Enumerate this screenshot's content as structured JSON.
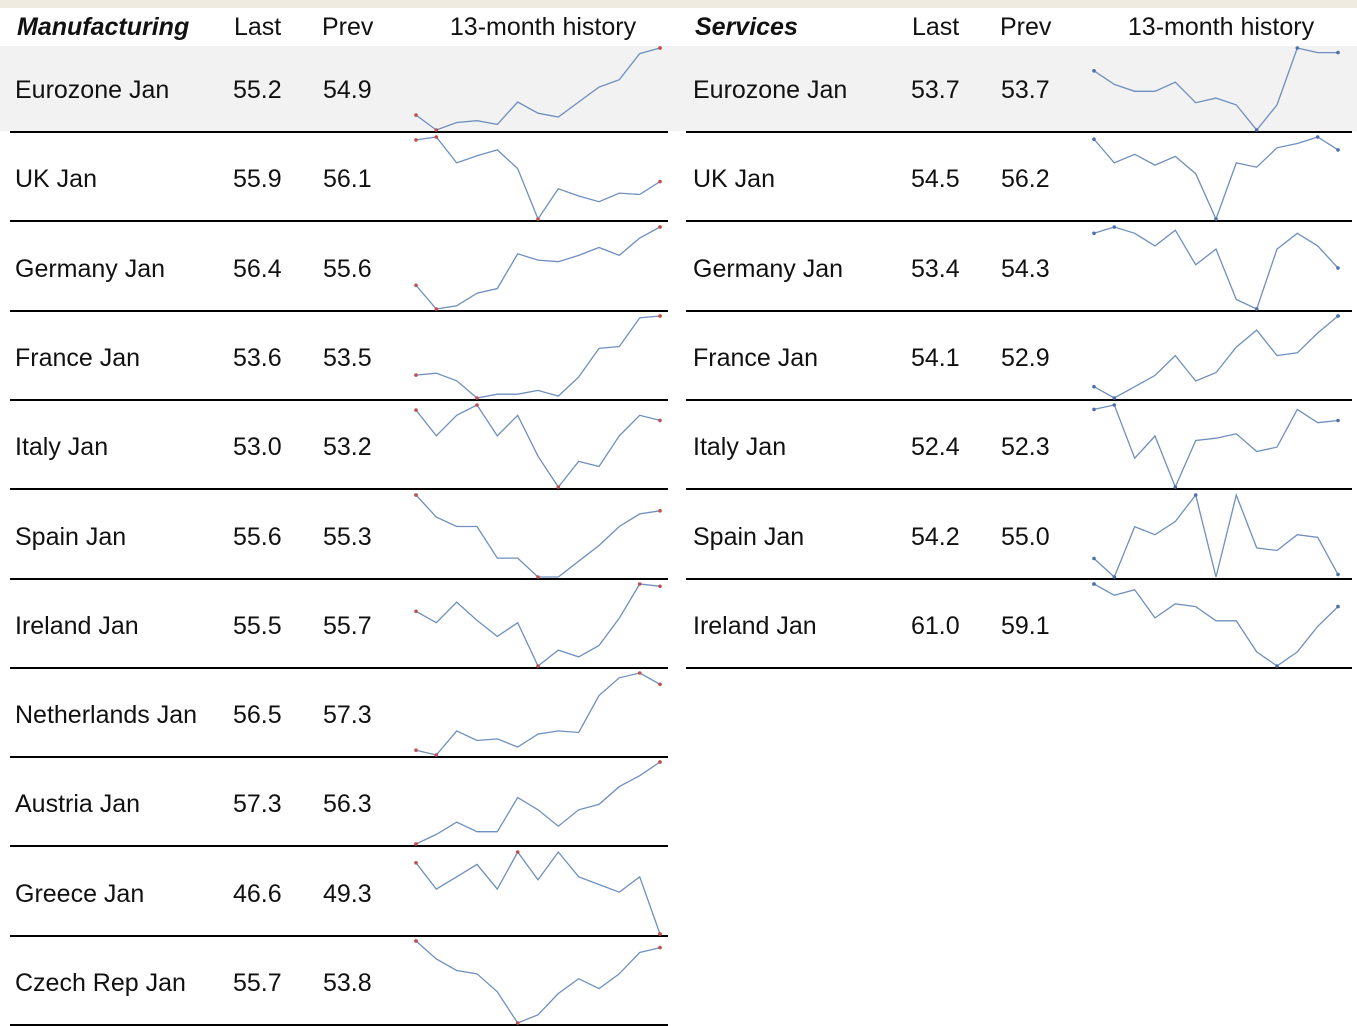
{
  "colors": {
    "line": "#6f8fbf",
    "marker_extreme": "#c0504d",
    "marker_end": "#4f6fa8",
    "highlight_row": "#f2f2f2",
    "top_band": "#efebe0"
  },
  "manufacturing": {
    "title": "Manufacturing",
    "last_label": "Last",
    "prev_label": "Prev",
    "history_label": "13-month history"
  },
  "services": {
    "title": "Services",
    "last_label": "Last",
    "prev_label": "Prev",
    "history_label": "13-month history"
  },
  "chart_data": [
    {
      "type": "table",
      "section": "Manufacturing",
      "columns": [
        "",
        "Last",
        "Prev",
        "13-month history"
      ],
      "rows": [
        {
          "label": "Eurozone Jan",
          "last": "55.2",
          "prev": "54.9",
          "history": [
            51.1,
            50.3,
            50.7,
            50.8,
            50.6,
            51.8,
            51.2,
            51.0,
            51.8,
            52.6,
            53.0,
            54.4,
            54.7
          ]
        },
        {
          "label": "UK Jan",
          "last": "55.9",
          "prev": "56.1",
          "history": [
            55.4,
            55.6,
            53.8,
            54.3,
            54.7,
            53.4,
            49.9,
            52.0,
            51.5,
            51.1,
            51.7,
            51.6,
            52.5
          ]
        },
        {
          "label": "Germany Jan",
          "last": "56.4",
          "prev": "55.6",
          "history": [
            51.9,
            50.4,
            50.6,
            51.4,
            51.7,
            53.9,
            53.5,
            53.4,
            53.8,
            54.3,
            53.8,
            54.9,
            55.6
          ]
        },
        {
          "label": "France Jan",
          "last": "53.6",
          "prev": "53.5",
          "history": [
            48.7,
            48.8,
            48.4,
            47.5,
            47.7,
            47.7,
            47.9,
            47.6,
            48.6,
            50.1,
            50.2,
            51.7,
            51.8
          ]
        },
        {
          "label": "Italy Jan",
          "last": "53.0",
          "prev": "53.2",
          "history": [
            53.4,
            52.9,
            53.3,
            53.5,
            52.9,
            53.3,
            52.5,
            51.9,
            52.4,
            52.3,
            52.9,
            53.3,
            53.2
          ]
        },
        {
          "label": "Spain Jan",
          "last": "55.6",
          "prev": "55.3",
          "history": [
            53.6,
            52.9,
            52.6,
            52.6,
            51.6,
            51.6,
            51.0,
            51.0,
            51.5,
            52.0,
            52.6,
            53.0,
            53.1
          ]
        },
        {
          "label": "Ireland Jan",
          "last": "55.5",
          "prev": "55.7",
          "history": [
            53.6,
            53.1,
            54.0,
            53.2,
            52.5,
            53.1,
            51.2,
            51.9,
            51.6,
            52.1,
            53.3,
            54.8,
            54.7
          ]
        },
        {
          "label": "Netherlands Jan",
          "last": "56.5",
          "prev": "57.3",
          "history": [
            52.5,
            52.2,
            53.7,
            53.1,
            53.2,
            52.7,
            53.5,
            53.7,
            53.6,
            55.9,
            57.0,
            57.3,
            56.6
          ]
        },
        {
          "label": "Austria Jan",
          "last": "57.3",
          "prev": "56.3",
          "history": [
            51.3,
            52.0,
            52.9,
            52.2,
            52.2,
            54.7,
            53.8,
            52.6,
            53.8,
            54.2,
            55.5,
            56.3,
            57.3
          ]
        },
        {
          "label": "Greece Jan",
          "last": "46.6",
          "prev": "49.3",
          "history": [
            51.2,
            49.5,
            50.3,
            51.1,
            49.5,
            51.9,
            50.1,
            51.9,
            50.3,
            49.8,
            49.3,
            50.3,
            46.6
          ]
        },
        {
          "label": "Czech Rep Jan",
          "last": "55.7",
          "prev": "53.8",
          "history": [
            57.8,
            56.7,
            56.0,
            55.8,
            54.7,
            52.8,
            53.3,
            54.6,
            55.5,
            54.9,
            55.8,
            57.1,
            57.4
          ]
        }
      ]
    },
    {
      "type": "table",
      "section": "Services",
      "columns": [
        "",
        "Last",
        "Prev",
        "13-month history"
      ],
      "rows": [
        {
          "label": "Eurozone Jan",
          "last": "53.7",
          "prev": "53.7",
          "history": [
            53.4,
            52.8,
            52.5,
            52.5,
            52.9,
            52.0,
            52.2,
            51.9,
            50.8,
            51.9,
            54.4,
            54.2,
            54.2
          ]
        },
        {
          "label": "UK Jan",
          "last": "54.5",
          "prev": "56.2",
          "history": [
            55.3,
            54.2,
            54.6,
            54.1,
            54.5,
            53.7,
            51.6,
            54.2,
            54.0,
            54.9,
            55.1,
            55.4,
            54.8
          ]
        },
        {
          "label": "Germany Jan",
          "last": "53.4",
          "prev": "54.3",
          "history": [
            54.5,
            54.7,
            54.5,
            54.1,
            54.6,
            53.5,
            54.0,
            52.4,
            52.1,
            54.0,
            54.5,
            54.1,
            53.4
          ]
        },
        {
          "label": "France Jan",
          "last": "54.1",
          "prev": "52.9",
          "history": [
            49.2,
            48.8,
            49.2,
            49.6,
            50.3,
            49.4,
            49.7,
            50.6,
            51.2,
            50.3,
            50.4,
            51.1,
            51.7
          ]
        },
        {
          "label": "Italy Jan",
          "last": "52.4",
          "prev": "52.3",
          "history": [
            52.8,
            53.0,
            50.6,
            51.6,
            49.3,
            51.4,
            51.5,
            51.7,
            50.9,
            51.1,
            52.8,
            52.2,
            52.3
          ]
        },
        {
          "label": "Spain Jan",
          "last": "54.2",
          "prev": "55.0",
          "history": [
            53.7,
            53.0,
            54.9,
            54.6,
            55.1,
            56.1,
            53.0,
            56.1,
            54.1,
            54.0,
            54.6,
            54.5,
            53.1
          ]
        },
        {
          "label": "Ireland Jan",
          "last": "61.0",
          "prev": "59.1",
          "history": [
            58.1,
            57.7,
            57.9,
            56.9,
            57.4,
            57.3,
            56.8,
            56.8,
            55.7,
            55.2,
            55.7,
            56.6,
            57.3
          ]
        }
      ]
    }
  ]
}
